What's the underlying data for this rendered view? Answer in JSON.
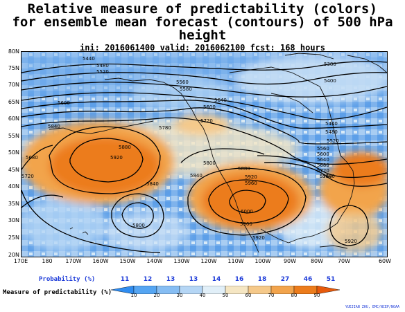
{
  "title": {
    "line1": "Relative measure of predictability (colors)",
    "line2": "for ensemble mean forecast (contours) of 500 hPa height",
    "line3": "ini: 2016061400 valid: 2016062100 fcst: 168 hours"
  },
  "map": {
    "lat_labels": [
      "80N",
      "75N",
      "70N",
      "65N",
      "60N",
      "55N",
      "50N",
      "45N",
      "40N",
      "35N",
      "30N",
      "25N",
      "20N"
    ],
    "lon_labels": [
      "170E",
      "180",
      "170W",
      "160W",
      "150W",
      "140W",
      "130W",
      "120W",
      "110W",
      "100W",
      "90W",
      "80W",
      "70W",
      "60W"
    ],
    "contour_labels": [
      "5440",
      "5480",
      "5520",
      "5560",
      "5580",
      "5600",
      "5640",
      "5680",
      "5720",
      "5760",
      "5780",
      "5800",
      "5840",
      "5880",
      "5920",
      "5960",
      "6000",
      "5380",
      "5400"
    ]
  },
  "legend": {
    "probability_title": "Probability (%)",
    "probabilities": [
      "11",
      "12",
      "13",
      "13",
      "14",
      "16",
      "18",
      "27",
      "46",
      "51"
    ],
    "measure_title": "Measure of predictability (%)",
    "measure_ticks": [
      "10",
      "20",
      "30",
      "40",
      "50",
      "60",
      "70",
      "80",
      "90"
    ],
    "colors": [
      "#2f8cf0",
      "#55a5f2",
      "#86bdf3",
      "#b5d6f5",
      "#e1eff8",
      "#f5e6c3",
      "#f5c98a",
      "#f2a44c",
      "#ec7c1c",
      "#e65a0c"
    ]
  },
  "credit": "YUEJIAN ZHU, EMC/NCEP/NOAA"
}
